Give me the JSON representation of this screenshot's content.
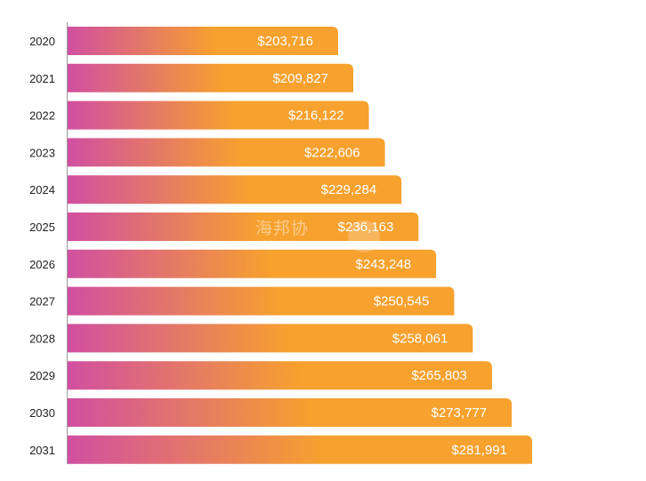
{
  "chart_data": {
    "type": "bar",
    "orientation": "horizontal",
    "categories": [
      "2020",
      "2021",
      "2022",
      "2023",
      "2024",
      "2025",
      "2026",
      "2027",
      "2028",
      "2029",
      "2030",
      "2031"
    ],
    "values": [
      203716,
      209827,
      216122,
      222606,
      229284,
      236163,
      243248,
      250545,
      258061,
      265803,
      273777,
      281991
    ],
    "value_labels": [
      "$203,716",
      "$209,827",
      "$216,122",
      "$222,606",
      "$229,284",
      "$236,163",
      "$243,248",
      "$250,545",
      "$258,061",
      "$265,803",
      "$273,777",
      "$281,991"
    ],
    "title": "",
    "xlabel": "",
    "ylabel": "",
    "grid": false,
    "legend": "none",
    "colors": {
      "gradient_start": "#d14fa1",
      "gradient_end": "#f7a12e",
      "label": "#ffffff",
      "axis": "#999999"
    }
  },
  "watermark": {
    "text_cn": "海邦协",
    "text_en": "Hinabian"
  }
}
